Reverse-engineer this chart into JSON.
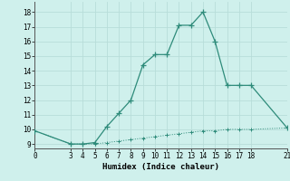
{
  "xlabel": "Humidex (Indice chaleur)",
  "upper_x": [
    0,
    3,
    4,
    5,
    6,
    7,
    8,
    9,
    10,
    11,
    12,
    13,
    14,
    15,
    16,
    17,
    18,
    21
  ],
  "upper_y": [
    9.9,
    9.0,
    9.0,
    9.1,
    10.2,
    11.1,
    12.0,
    14.4,
    15.1,
    15.1,
    17.1,
    17.1,
    18.0,
    16.0,
    13.0,
    13.0,
    13.0,
    10.1
  ],
  "lower_x": [
    0,
    3,
    4,
    5,
    6,
    7,
    8,
    9,
    10,
    11,
    12,
    13,
    14,
    15,
    16,
    17,
    18,
    21
  ],
  "lower_y": [
    9.9,
    9.0,
    9.0,
    9.0,
    9.1,
    9.2,
    9.3,
    9.4,
    9.5,
    9.6,
    9.7,
    9.8,
    9.9,
    9.9,
    10.0,
    10.0,
    10.0,
    10.1
  ],
  "line_color": "#2e8b7a",
  "bg_color": "#cff0ec",
  "grid_color": "#b8ddd9",
  "xlim": [
    0,
    21
  ],
  "ylim": [
    8.7,
    18.7
  ],
  "xticks": [
    0,
    3,
    4,
    5,
    6,
    7,
    8,
    9,
    10,
    11,
    12,
    13,
    14,
    15,
    16,
    17,
    18,
    21
  ],
  "yticks": [
    9,
    10,
    11,
    12,
    13,
    14,
    15,
    16,
    17,
    18
  ],
  "tick_fontsize": 5.5,
  "label_fontsize": 6.5,
  "marker_size": 4
}
